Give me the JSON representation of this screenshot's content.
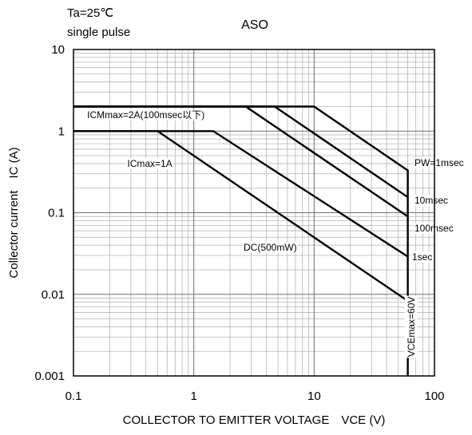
{
  "chart_data": {
    "type": "line",
    "title": "ASO",
    "conditions": [
      "Ta=25℃",
      "single pulse"
    ],
    "xlabel": "COLLECTOR TO EMITTER VOLTAGE　VCE (V)",
    "ylabel": "Collector current　IC (A)",
    "x_scale": "log",
    "y_scale": "log",
    "xlim": [
      0.1,
      100
    ],
    "ylim": [
      0.001,
      10
    ],
    "x_ticks": [
      0.1,
      1,
      10,
      100
    ],
    "x_tick_labels": [
      "0.1",
      "1",
      "10",
      "100"
    ],
    "y_ticks": [
      0.001,
      0.01,
      0.1,
      1,
      10
    ],
    "y_tick_labels": [
      "0.001",
      "0.01",
      "0.1",
      "1",
      "10"
    ],
    "grid": true,
    "series": [
      {
        "name": "PW=1msec",
        "x": [
          0.1,
          10,
          60,
          60
        ],
        "y": [
          2,
          2,
          0.33,
          0.001
        ]
      },
      {
        "name": "10msec",
        "x": [
          0.1,
          4.7,
          60
        ],
        "y": [
          2,
          2,
          0.155
        ]
      },
      {
        "name": "100msec",
        "x": [
          0.1,
          2.7,
          60
        ],
        "y": [
          2,
          2,
          0.09
        ]
      },
      {
        "name": "1sec",
        "x": [
          0.1,
          1.45,
          60
        ],
        "y": [
          1,
          1,
          0.029
        ]
      },
      {
        "name": "DC(500mW)",
        "x": [
          0.1,
          0.5,
          60
        ],
        "y": [
          1,
          1,
          0.0083
        ]
      }
    ],
    "annotations": [
      {
        "text": "ICMmax=2A(100msec以下)",
        "x": 0.13,
        "y": 1.58
      },
      {
        "text": "ICmax=1A",
        "x": 0.28,
        "y": 0.4
      },
      {
        "text": "VCEmax=60V",
        "x": 68,
        "y": 0.004
      }
    ]
  }
}
